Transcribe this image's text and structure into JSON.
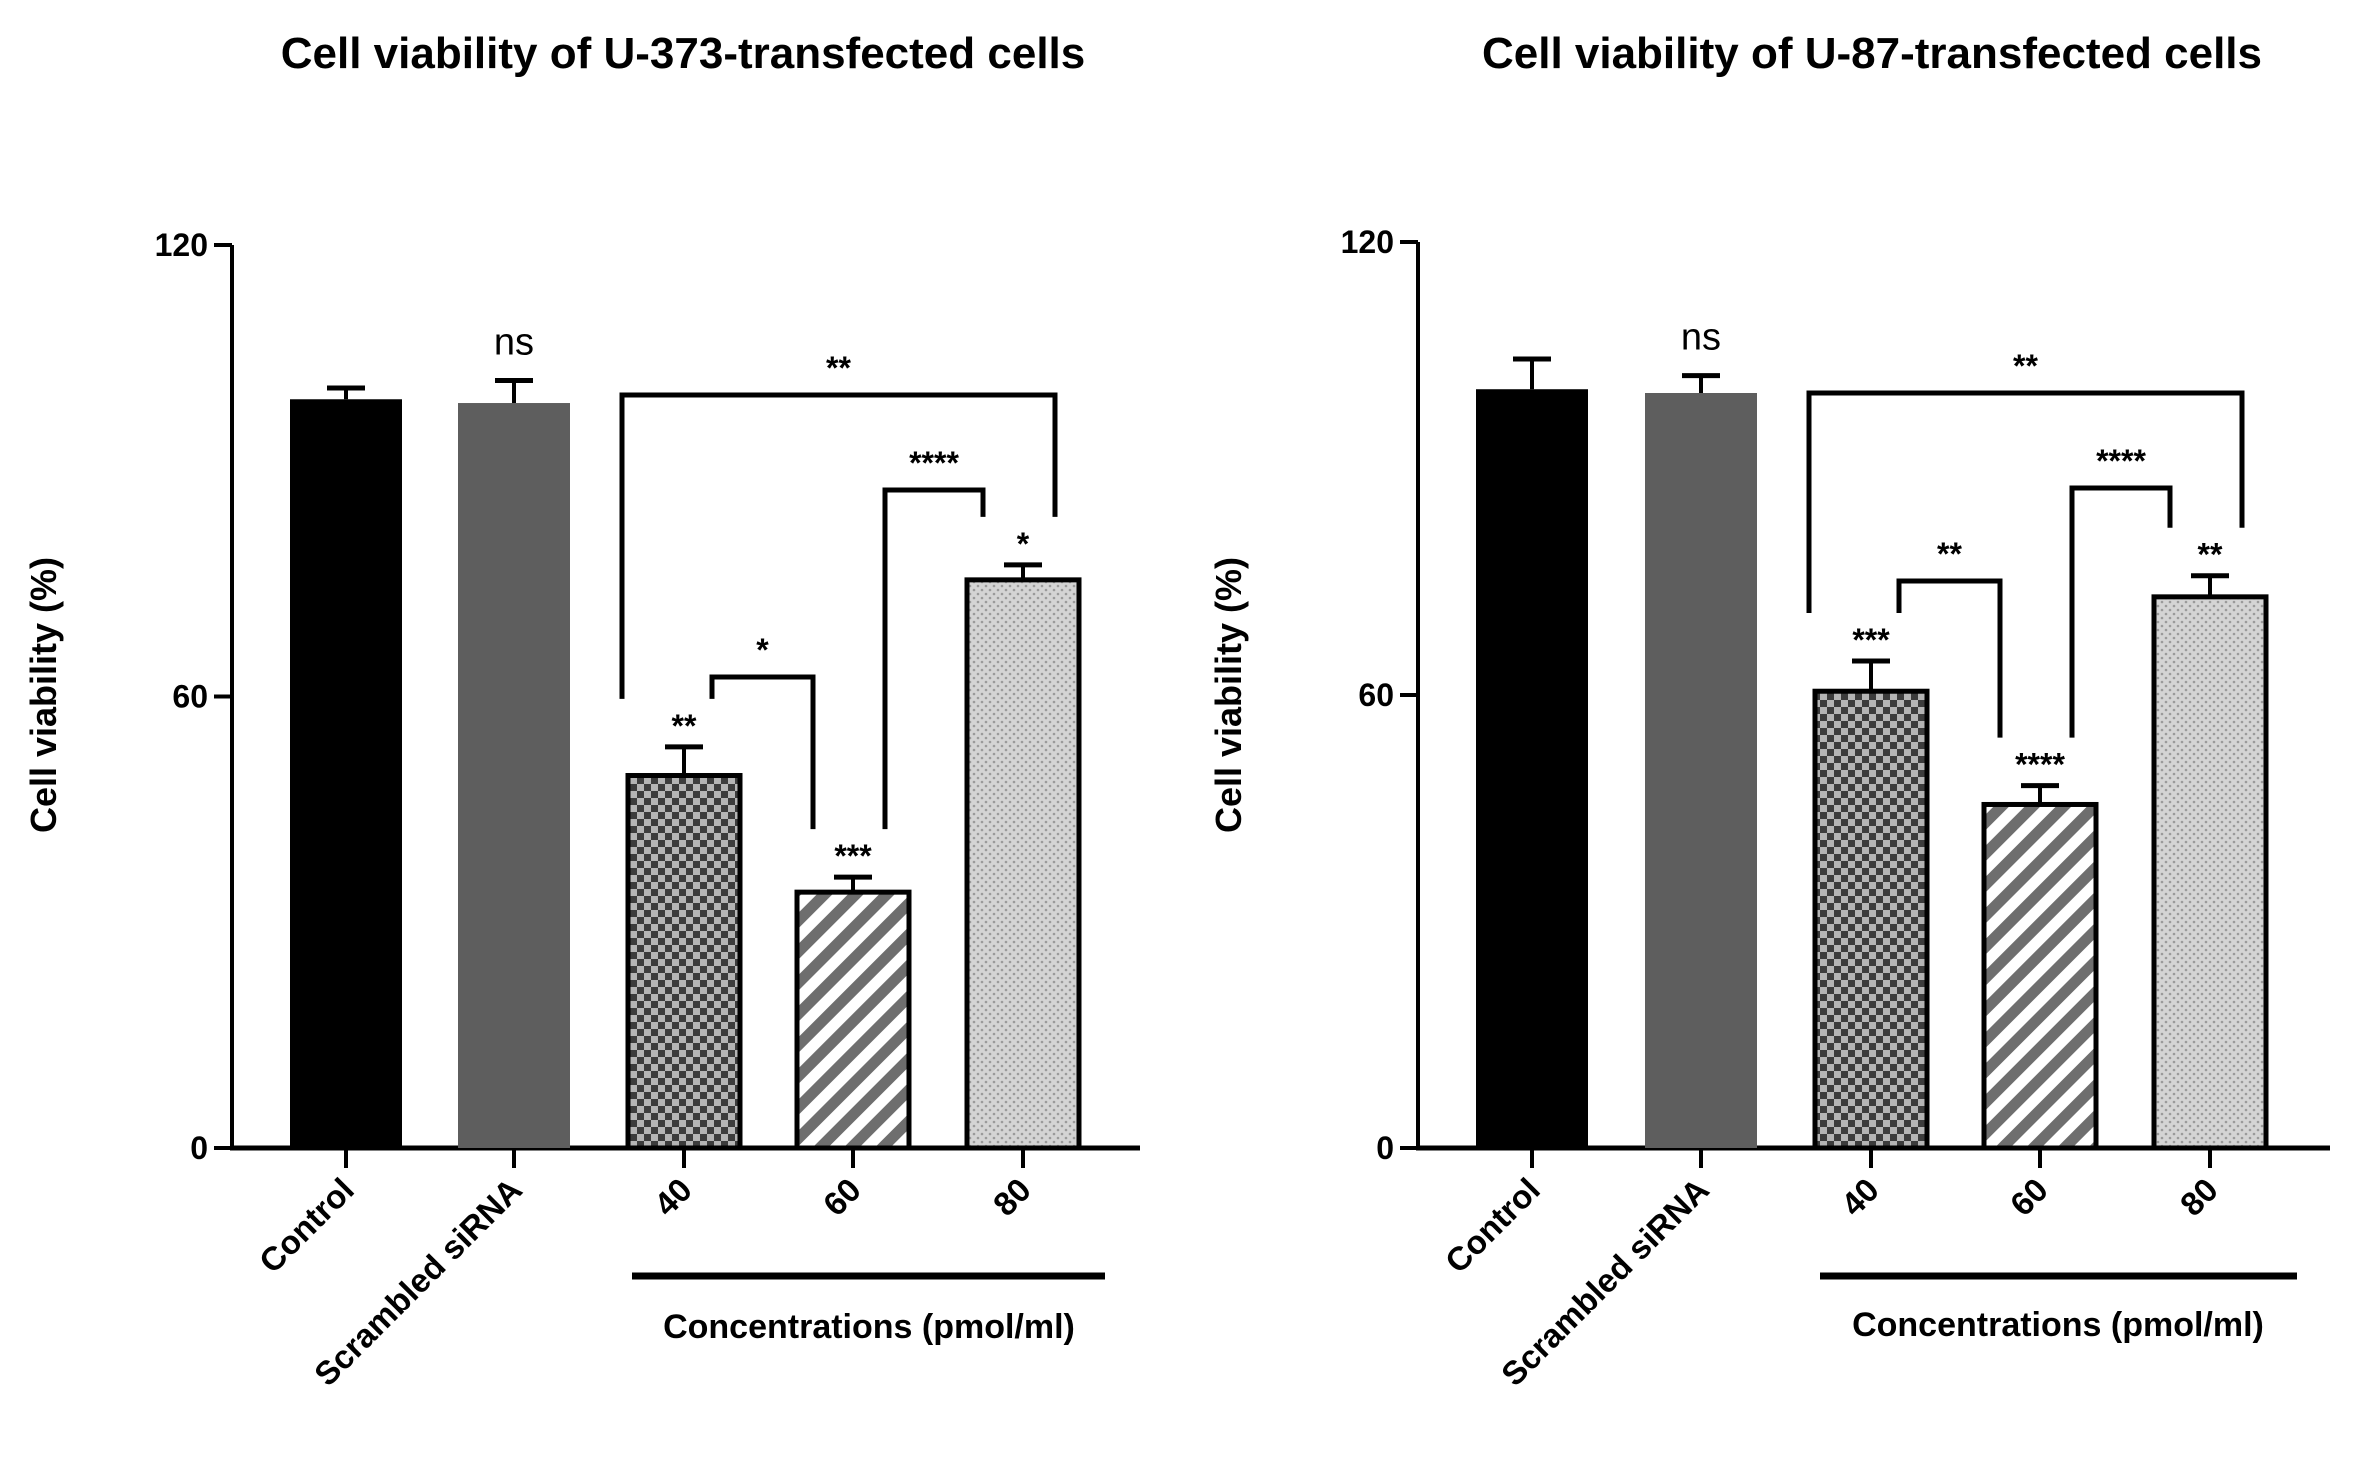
{
  "chart_data": [
    {
      "type": "bar",
      "title": "Cell viability of U-373-transfected cells",
      "xlabel": "",
      "ylabel": "Cell viability (%)",
      "ylim": [
        0,
        120
      ],
      "yticks": [
        "0",
        "60",
        "120"
      ],
      "grid": false,
      "group_label": "Concentrations (pmol/ml)",
      "categories": [
        "Control",
        "Scrambled siRNA",
        "40",
        "60",
        "80"
      ],
      "values": [
        99.5,
        99,
        49.5,
        34,
        75.5
      ],
      "errors": [
        1.5,
        3,
        3.8,
        2,
        2
      ],
      "fills": [
        "solid-black",
        "solid-gray",
        "checker",
        "diagonal-stripes",
        "dotted"
      ],
      "bar_labels": [
        "",
        "ns",
        "**",
        "***",
        "*"
      ],
      "brackets": [
        {
          "from": "40",
          "to": "80",
          "label": "**"
        },
        {
          "from": "40",
          "to": "60",
          "label": "*"
        },
        {
          "from": "60",
          "to": "80",
          "label": "****"
        }
      ]
    },
    {
      "type": "bar",
      "title": "Cell viability of U-87-transfected cells",
      "xlabel": "",
      "ylabel": "Cell viability (%)",
      "ylim": [
        0,
        120
      ],
      "yticks": [
        "0",
        "60",
        "120"
      ],
      "grid": false,
      "group_label": "Concentrations (pmol/ml)",
      "categories": [
        "Control",
        "Scrambled siRNA",
        "40",
        "60",
        "80"
      ],
      "values": [
        100.5,
        100,
        60.5,
        45.5,
        73
      ],
      "errors": [
        4,
        2.3,
        4,
        2.5,
        2.8
      ],
      "fills": [
        "solid-black",
        "solid-gray",
        "checker",
        "diagonal-stripes",
        "dotted"
      ],
      "bar_labels": [
        "",
        "ns",
        "***",
        "****",
        "**"
      ],
      "brackets": [
        {
          "from": "40",
          "to": "80",
          "label": "**"
        },
        {
          "from": "40",
          "to": "60",
          "label": "**"
        },
        {
          "from": "60",
          "to": "80",
          "label": "****"
        }
      ]
    }
  ],
  "colors": {
    "control": "#000000",
    "scrambled": "#5e5e5e",
    "checker_dark": "#3c3c3c",
    "checker_light": "#b4b4b4",
    "stripe_dark": "#6e6e6e",
    "dot_bg": "#d4d4d4",
    "dot_fg": "#9a9a9a"
  }
}
